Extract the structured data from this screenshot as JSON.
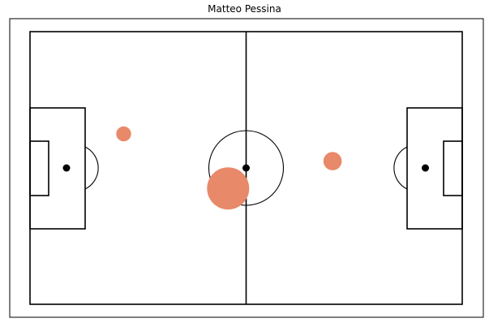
{
  "chart_data": {
    "type": "scatter",
    "title": "Matteo Pessina",
    "xlim": [
      0,
      120
    ],
    "ylim": [
      0,
      80
    ],
    "marker_color": "#E8896A",
    "points": [
      {
        "x": 26,
        "y": 50,
        "size": 1
      },
      {
        "x": 55,
        "y": 34,
        "size": 8
      },
      {
        "x": 84,
        "y": 42,
        "size": 1.5
      }
    ]
  }
}
